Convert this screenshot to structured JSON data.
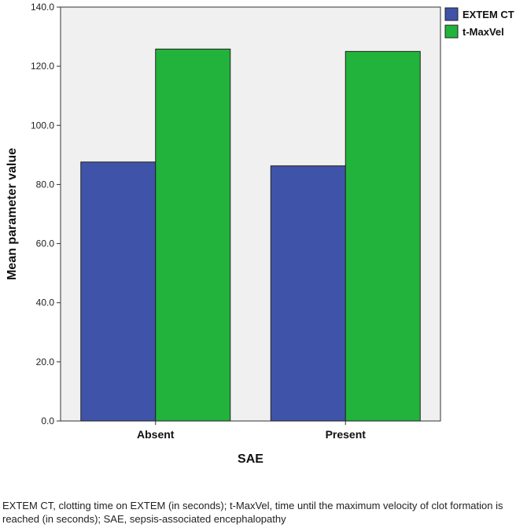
{
  "chart_data": {
    "type": "bar",
    "categories": [
      "Absent",
      "Present"
    ],
    "series": [
      {
        "name": "EXTEM CT",
        "values": [
          87.6,
          86.3
        ],
        "color": "#3F54A8"
      },
      {
        "name": "t-MaxVel",
        "values": [
          125.8,
          125.0
        ],
        "color": "#22B33C"
      }
    ],
    "xlabel": "SAE",
    "ylabel": "Mean parameter value",
    "ylim": [
      0,
      140
    ],
    "yticks": [
      0,
      20,
      40,
      60,
      80,
      100,
      120,
      140
    ],
    "ytick_labels": [
      "0.0",
      "20.0",
      "40.0",
      "60.0",
      "80.0",
      "100.0",
      "120.0",
      "140.0"
    ],
    "legend_position": "top-right",
    "plot_background": "#F0F0F0"
  },
  "caption": "EXTEM CT, clotting time on EXTEM (in seconds); t-MaxVel, time until the maximum velocity of clot formation is reached (in seconds); SAE, sepsis-associated encephalopathy"
}
